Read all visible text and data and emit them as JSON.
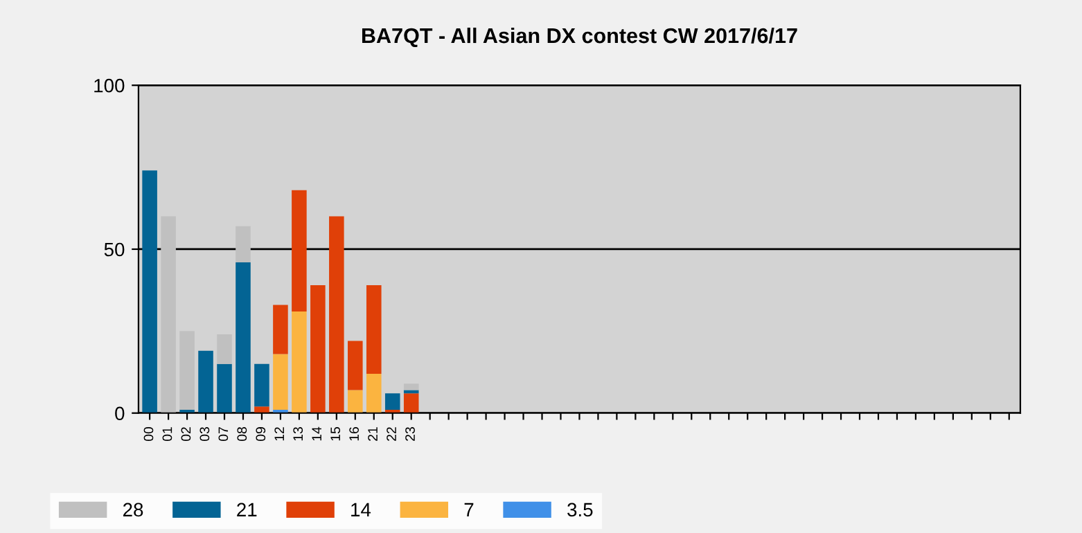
{
  "chart_data": {
    "type": "bar",
    "stacked": true,
    "title": "BA7QT - All Asian DX contest CW 2017/6/17",
    "categories": [
      "00",
      "01",
      "02",
      "03",
      "07",
      "08",
      "09",
      "12",
      "13",
      "14",
      "15",
      "16",
      "21",
      "22",
      "23",
      null,
      null,
      null,
      null,
      null,
      null,
      null,
      null,
      null,
      null,
      null,
      null,
      null,
      null,
      null,
      null,
      null,
      null,
      null,
      null,
      null,
      null,
      null,
      null,
      null,
      null,
      null,
      null,
      null,
      null,
      null,
      null
    ],
    "series": [
      {
        "name": "3.5",
        "color": "#4090e8",
        "values": [
          null,
          null,
          null,
          null,
          null,
          null,
          null,
          1,
          null,
          null,
          null,
          null,
          null,
          null,
          null,
          null,
          null,
          null,
          null,
          null,
          null,
          null,
          null,
          null,
          null,
          null,
          null,
          null,
          null,
          null,
          null,
          null,
          null,
          null,
          null,
          null,
          null,
          null,
          null,
          null,
          null,
          null,
          null,
          null,
          null,
          null,
          null
        ]
      },
      {
        "name": "7",
        "color": "#fbb440",
        "values": [
          null,
          null,
          null,
          null,
          null,
          null,
          null,
          17,
          31,
          null,
          null,
          7,
          12,
          null,
          null,
          null,
          null,
          null,
          null,
          null,
          null,
          null,
          null,
          null,
          null,
          null,
          null,
          null,
          null,
          null,
          null,
          null,
          null,
          null,
          null,
          null,
          null,
          null,
          null,
          null,
          null,
          null,
          null,
          null,
          null,
          null,
          null
        ]
      },
      {
        "name": "14",
        "color": "#e04008",
        "values": [
          null,
          null,
          null,
          null,
          null,
          null,
          2,
          15,
          37,
          39,
          60,
          15,
          27,
          1,
          6,
          null,
          null,
          null,
          null,
          null,
          null,
          null,
          null,
          null,
          null,
          null,
          null,
          null,
          null,
          null,
          null,
          null,
          null,
          null,
          null,
          null,
          null,
          null,
          null,
          null,
          null,
          null,
          null,
          null,
          null,
          null,
          null
        ]
      },
      {
        "name": "21",
        "color": "#036494",
        "values": [
          74,
          null,
          1,
          19,
          15,
          46,
          13,
          null,
          null,
          null,
          null,
          null,
          null,
          5,
          1,
          null,
          null,
          null,
          null,
          null,
          null,
          null,
          null,
          null,
          null,
          null,
          null,
          null,
          null,
          null,
          null,
          null,
          null,
          null,
          null,
          null,
          null,
          null,
          null,
          null,
          null,
          null,
          null,
          null,
          null,
          null,
          null
        ]
      },
      {
        "name": "28",
        "color": "#c0c0c0",
        "values": [
          null,
          60,
          24,
          null,
          9,
          11,
          null,
          null,
          null,
          null,
          null,
          null,
          null,
          null,
          2,
          null,
          null,
          null,
          null,
          null,
          null,
          null,
          null,
          null,
          null,
          null,
          null,
          null,
          null,
          null,
          null,
          null,
          null,
          null,
          null,
          null,
          null,
          null,
          null,
          null,
          null,
          null,
          null,
          null,
          null,
          null,
          null
        ]
      }
    ],
    "ylim": [
      0,
      100
    ],
    "yticks": [
      0,
      50,
      100
    ],
    "grid": "y",
    "legend": "bottom"
  }
}
